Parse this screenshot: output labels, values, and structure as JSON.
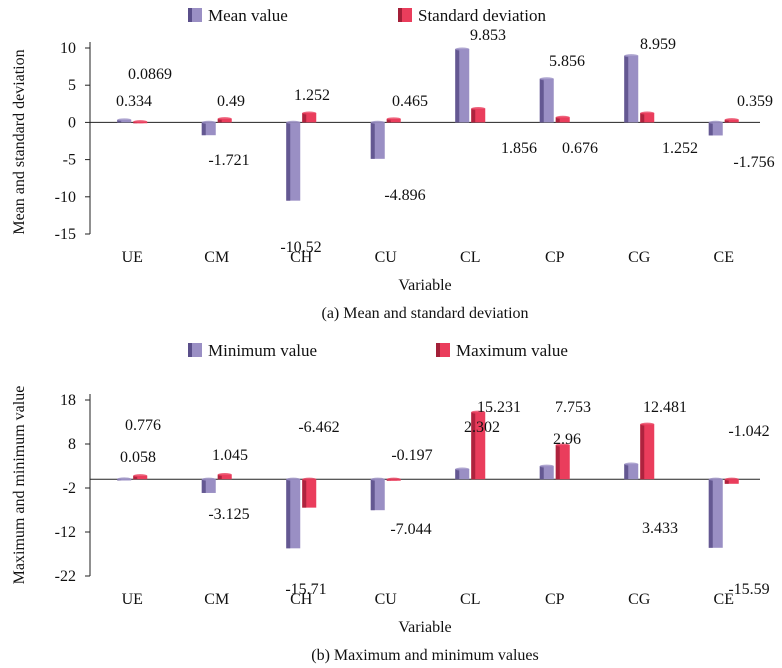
{
  "colors": {
    "mean": "#9a8fc4",
    "mean_dark": "#5a4f8a",
    "sd": "#ea3d5c",
    "sd_dark": "#a31f38"
  },
  "chart_data": [
    {
      "type": "bar",
      "title": "",
      "caption": "(a) Mean and standard deviation",
      "xlabel": "Variable",
      "ylabel": "Mean and standard deviation",
      "categories": [
        "UE",
        "CM",
        "CH",
        "CU",
        "CL",
        "CP",
        "CG",
        "CE"
      ],
      "ylim": [
        -15,
        10
      ],
      "yticks": [
        10,
        5,
        0,
        -5,
        -10,
        -15
      ],
      "series": [
        {
          "name": "Mean value",
          "values": [
            0.334,
            -1.721,
            -10.52,
            -4.896,
            9.853,
            5.856,
            8.959,
            -1.756
          ]
        },
        {
          "name": "Standard deviation",
          "values": [
            0.0869,
            0.49,
            1.252,
            0.465,
            1.856,
            0.676,
            1.252,
            0.359
          ]
        }
      ],
      "data_labels": [
        [
          "0.334",
          "-1.721",
          "-10.52",
          "-4.896",
          "9.853",
          "5.856",
          "8.959",
          "-1.756"
        ],
        [
          "0.0869",
          "0.49",
          "1.252",
          "0.465",
          "1.856",
          "0.676",
          "1.252",
          "0.359"
        ]
      ],
      "legend": "top"
    },
    {
      "type": "bar",
      "title": "",
      "caption": "(b) Maximum and minimum values",
      "xlabel": "Variable",
      "ylabel": "Maximum and minimum value",
      "categories": [
        "UE",
        "CM",
        "CH",
        "CU",
        "CL",
        "CP",
        "CG",
        "CE"
      ],
      "ylim": [
        -22,
        18
      ],
      "yticks": [
        18,
        8,
        -2,
        -12,
        -22
      ],
      "series": [
        {
          "name": "Minimum value",
          "values": [
            0.058,
            -3.125,
            -15.71,
            -7.044,
            2.302,
            2.96,
            3.433,
            -15.59
          ]
        },
        {
          "name": "Maximum value",
          "values": [
            0.776,
            1.045,
            -6.462,
            -0.197,
            15.231,
            7.753,
            12.481,
            -1.042
          ]
        }
      ],
      "data_labels": [
        [
          "0.058",
          "-3.125",
          "-15.71",
          "-7.044",
          "2.302",
          "2.96",
          "3.433",
          "-15.59"
        ],
        [
          "0.776",
          "1.045",
          "-6.462",
          "-0.197",
          "15.231",
          "7.753",
          "12.481",
          "-1.042"
        ]
      ],
      "legend": "top"
    }
  ]
}
